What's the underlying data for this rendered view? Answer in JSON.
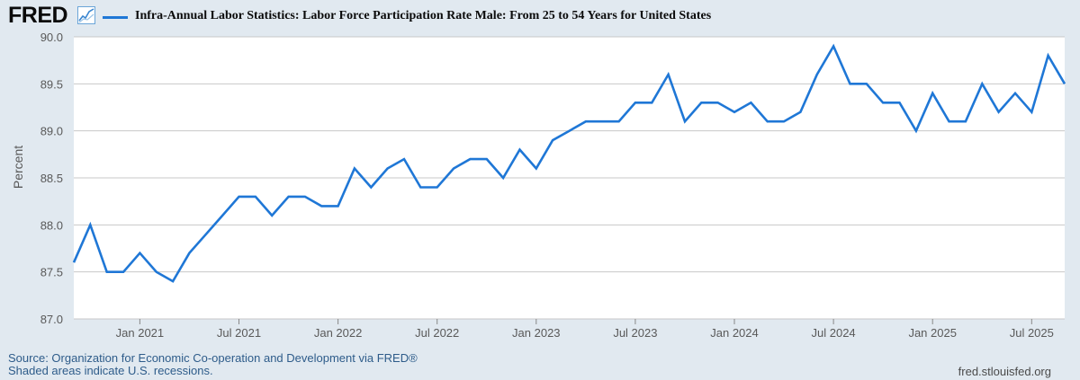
{
  "header": {
    "logo_text": "FRED",
    "logo_icon": "chart-trend-icon",
    "legend_series": "Infra-Annual Labor Statistics: Labor Force Participation Rate Male: From 25 to 54 Years for United States",
    "legend_color": "#1f77d6"
  },
  "footer": {
    "source": "Source: Organization for Economic Co-operation and Development via FRED®",
    "note": "Shaded areas indicate U.S. recessions.",
    "site": "fred.stlouisfed.org"
  },
  "chart_data": {
    "type": "line",
    "title": "",
    "xlabel": "",
    "ylabel": "Percent",
    "ylim": [
      87.0,
      90.0
    ],
    "yticks": [
      "87.0",
      "87.5",
      "88.0",
      "88.5",
      "89.0",
      "89.5",
      "90.0"
    ],
    "xticks": [
      "Jan 2021",
      "Jul 2021",
      "Jan 2022",
      "Jul 2022",
      "Jan 2023",
      "Jul 2023",
      "Jan 2024",
      "Jul 2024",
      "Jan 2025",
      "Jul 2025"
    ],
    "x_start": "2020-09",
    "x_end": "2025-09",
    "grid": true,
    "series": [
      {
        "name": "Infra-Annual Labor Statistics: Labor Force Participation Rate Male: From 25 to 54 Years for United States",
        "color": "#1f77d6",
        "x": [
          "2020-09",
          "2020-10",
          "2020-11",
          "2020-12",
          "2021-01",
          "2021-02",
          "2021-03",
          "2021-04",
          "2021-05",
          "2021-06",
          "2021-07",
          "2021-08",
          "2021-09",
          "2021-10",
          "2021-11",
          "2021-12",
          "2022-01",
          "2022-02",
          "2022-03",
          "2022-04",
          "2022-05",
          "2022-06",
          "2022-07",
          "2022-08",
          "2022-09",
          "2022-10",
          "2022-11",
          "2022-12",
          "2023-01",
          "2023-02",
          "2023-03",
          "2023-04",
          "2023-05",
          "2023-06",
          "2023-07",
          "2023-08",
          "2023-09",
          "2023-10",
          "2023-11",
          "2023-12",
          "2024-01",
          "2024-02",
          "2024-03",
          "2024-04",
          "2024-05",
          "2024-06",
          "2024-07",
          "2024-08",
          "2024-09",
          "2024-10",
          "2024-11",
          "2024-12",
          "2025-01",
          "2025-02",
          "2025-03",
          "2025-04",
          "2025-05",
          "2025-06",
          "2025-07",
          "2025-08",
          "2025-09"
        ],
        "values": [
          87.6,
          88.0,
          87.5,
          87.5,
          87.7,
          87.5,
          87.4,
          87.7,
          87.9,
          88.1,
          88.3,
          88.3,
          88.1,
          88.3,
          88.3,
          88.2,
          88.2,
          88.6,
          88.4,
          88.6,
          88.7,
          88.4,
          88.4,
          88.6,
          88.7,
          88.7,
          88.5,
          88.8,
          88.6,
          88.9,
          89.0,
          89.1,
          89.1,
          89.1,
          89.3,
          89.3,
          89.6,
          89.1,
          89.3,
          89.3,
          89.2,
          89.3,
          89.1,
          89.1,
          89.2,
          89.6,
          89.9,
          89.5,
          89.5,
          89.3,
          89.3,
          89.0,
          89.4,
          89.1,
          89.1,
          89.5,
          89.2,
          89.4,
          89.2,
          89.8,
          89.5
        ]
      }
    ]
  }
}
